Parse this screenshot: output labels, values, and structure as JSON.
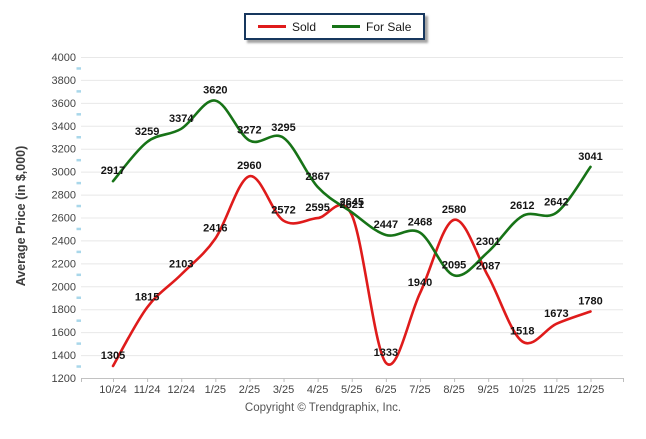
{
  "chart_data": {
    "type": "line",
    "title": "",
    "xlabel": "",
    "ylabel": "Average Price (in $,000)",
    "categories": [
      "10/24",
      "11/24",
      "12/24",
      "1/25",
      "2/25",
      "3/25",
      "4/25",
      "5/25",
      "6/25",
      "7/25",
      "8/25",
      "9/25",
      "10/25",
      "11/25",
      "12/25"
    ],
    "series": [
      {
        "name": "Sold",
        "color": "#df1b1b",
        "values": [
          1305,
          1815,
          2103,
          2416,
          2960,
          2572,
          2595,
          2621,
          1333,
          1940,
          2580,
          2087,
          1518,
          1673,
          1780
        ]
      },
      {
        "name": "For Sale",
        "color": "#177317",
        "values": [
          2917,
          3259,
          3374,
          3620,
          3272,
          3295,
          2867,
          2645,
          2447,
          2468,
          2095,
          2301,
          2612,
          2642,
          3041
        ]
      }
    ],
    "ylim": [
      1200,
      4000
    ],
    "ytick_step": 200,
    "grid": "horizontal",
    "legend_position": "top-center",
    "show_point_labels": true
  },
  "legend": {
    "items": [
      {
        "label": "Sold",
        "color": "#df1b1b"
      },
      {
        "label": "For Sale",
        "color": "#177317"
      }
    ]
  },
  "footer": {
    "copyright": "Copyright © Trendgraphix, Inc."
  },
  "colors": {
    "gridline": "#e8e8e8",
    "axis_line": "#c2c2c2",
    "tick": "#bdbdbd",
    "minor_tick_blue": "#a9d7ea",
    "axis_text": "#444444",
    "data_label": "#141414",
    "legend_border": "#17375e"
  }
}
